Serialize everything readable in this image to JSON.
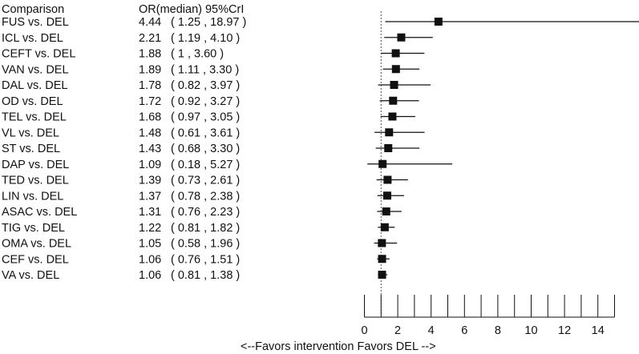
{
  "chart_data": {
    "type": "forest",
    "headers": {
      "comparison": "Comparison",
      "estimate": "OR(median) 95%CrI"
    },
    "rows": [
      {
        "label": "FUS vs. DEL",
        "or": 4.44,
        "lo": 1.25,
        "hi": 18.97,
        "or_text": "4.44",
        "ci_text": "( 1.25 ,  18.97 )"
      },
      {
        "label": "ICL vs. DEL",
        "or": 2.21,
        "lo": 1.19,
        "hi": 4.1,
        "or_text": "2.21",
        "ci_text": "( 1.19 ,  4.10 )"
      },
      {
        "label": "CEFT vs. DEL",
        "or": 1.88,
        "lo": 1.0,
        "hi": 3.6,
        "or_text": "1.88",
        "ci_text": "( 1 ,  3.60 )"
      },
      {
        "label": "VAN vs. DEL",
        "or": 1.89,
        "lo": 1.11,
        "hi": 3.3,
        "or_text": "1.89",
        "ci_text": "( 1.11 ,  3.30 )"
      },
      {
        "label": "DAL vs. DEL",
        "or": 1.78,
        "lo": 0.82,
        "hi": 3.97,
        "or_text": "1.78",
        "ci_text": "( 0.82 ,  3.97 )"
      },
      {
        "label": "OD vs. DEL",
        "or": 1.72,
        "lo": 0.92,
        "hi": 3.27,
        "or_text": "1.72",
        "ci_text": "( 0.92 ,  3.27 )"
      },
      {
        "label": "TEL vs. DEL",
        "or": 1.68,
        "lo": 0.97,
        "hi": 3.05,
        "or_text": "1.68",
        "ci_text": "( 0.97 ,  3.05 )"
      },
      {
        "label": "VL vs. DEL",
        "or": 1.48,
        "lo": 0.61,
        "hi": 3.61,
        "or_text": "1.48",
        "ci_text": "( 0.61 ,  3.61 )"
      },
      {
        "label": "ST vs. DEL",
        "or": 1.43,
        "lo": 0.68,
        "hi": 3.3,
        "or_text": "1.43",
        "ci_text": "( 0.68 ,  3.30 )"
      },
      {
        "label": "DAP vs. DEL",
        "or": 1.09,
        "lo": 0.18,
        "hi": 5.27,
        "or_text": "1.09",
        "ci_text": "( 0.18 ,  5.27 )"
      },
      {
        "label": "TED vs. DEL",
        "or": 1.39,
        "lo": 0.73,
        "hi": 2.61,
        "or_text": "1.39",
        "ci_text": "( 0.73 ,  2.61 )"
      },
      {
        "label": "LIN vs. DEL",
        "or": 1.37,
        "lo": 0.78,
        "hi": 2.38,
        "or_text": "1.37",
        "ci_text": "( 0.78 ,  2.38 )"
      },
      {
        "label": "ASAC vs. DEL",
        "or": 1.31,
        "lo": 0.76,
        "hi": 2.23,
        "or_text": "1.31",
        "ci_text": "( 0.76 ,  2.23 )"
      },
      {
        "label": "TIG vs. DEL",
        "or": 1.22,
        "lo": 0.81,
        "hi": 1.82,
        "or_text": "1.22",
        "ci_text": "( 0.81 ,  1.82 )"
      },
      {
        "label": "OMA vs. DEL",
        "or": 1.05,
        "lo": 0.58,
        "hi": 1.96,
        "or_text": "1.05",
        "ci_text": "( 0.58 ,  1.96 )"
      },
      {
        "label": "CEF vs. DEL",
        "or": 1.06,
        "lo": 0.76,
        "hi": 1.51,
        "or_text": "1.06",
        "ci_text": "( 0.76 ,  1.51 )"
      },
      {
        "label": "VA vs. DEL",
        "or": 1.06,
        "lo": 0.81,
        "hi": 1.38,
        "or_text": "1.06",
        "ci_text": "( 0.81 ,  1.38 )"
      }
    ],
    "x_axis": {
      "ticks": [
        0,
        2,
        4,
        6,
        8,
        10,
        12,
        14
      ],
      "range": [
        0,
        15
      ],
      "caption": "<--Favors intervention  Favors  DEL -->"
    },
    "reference_line": 1
  }
}
